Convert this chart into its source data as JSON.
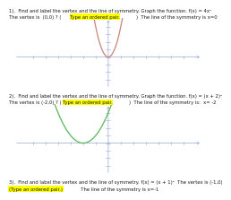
{
  "sections": [
    {
      "line1": "1).  Find and label the vertex and the line of symmetry. Graph the function. f(x) = 4x²",
      "line2_a": "The vertex is  (0,0) ? (",
      "line2_hl": "Type an ordered pair.",
      "line2_b": ")  The line of the symmetry is x=0",
      "has_graph": true,
      "func_type": "4x2",
      "curve_color": "#c8837a",
      "xrange": [
        -7.5,
        7.5
      ],
      "yrange": [
        -4.2,
        5.2
      ]
    },
    {
      "line1": "2).  Find and label the vertex and the line of symmetry. Graph the function. f(x) = (x + 2)²",
      "line2_a": "The vertex is (-2,0) ? (",
      "line2_hl": "Type an ordered pair.",
      "line2_b": ")  The line of the symmetry is:  x= -2",
      "has_graph": true,
      "func_type": "(x+2)2",
      "curve_color": "#5ab55a",
      "xrange": [
        -7.5,
        7.5
      ],
      "yrange": [
        -4.2,
        5.2
      ]
    },
    {
      "line1": "3).  Find and label the vertex and the line of symmetry. f(x) = (x + 1)²  The vertex is (-1,0)",
      "line2_hl": "(Type an ordered pair.)",
      "line2_b": "  The line of the symmetry is x=-1",
      "has_graph": false,
      "func_type": null,
      "curve_color": null,
      "xrange": null,
      "yrange": null
    }
  ],
  "bg_color": "#ffffff",
  "text_color": "#1a1a1a",
  "axis_color": "#9aaad4",
  "highlight_bg": "#ffff00",
  "font_size": 3.8,
  "highlight_font_size": 3.8
}
